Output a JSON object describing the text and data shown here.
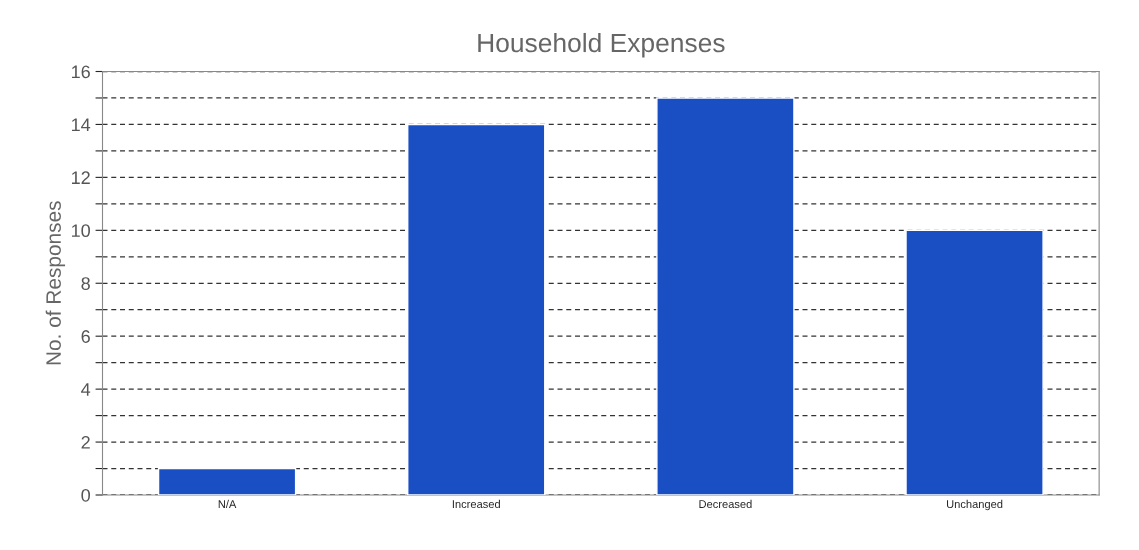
{
  "chart_data": {
    "type": "bar",
    "title": "Household Expenses",
    "ylabel": "No. of Responses",
    "categories": [
      "N/A",
      "Increased",
      "Decreased",
      "Unchanged"
    ],
    "values": [
      1,
      14,
      15,
      10
    ],
    "color": "#1a4fc4",
    "ylim": [
      0,
      16
    ],
    "yticks": [
      0,
      {
        "value": 1,
        "label": null
      },
      2,
      {
        "value": 3,
        "label": null
      },
      4,
      {
        "value": 5,
        "label": null
      },
      6,
      {
        "value": 7,
        "label": null
      },
      8,
      {
        "value": 9,
        "label": null
      },
      10,
      {
        "value": 11,
        "label": null
      },
      12,
      {
        "value": 13,
        "label": null
      },
      14,
      {
        "value": 15,
        "label": null
      },
      16
    ],
    "grid": "y",
    "line_style": "dashed"
  }
}
